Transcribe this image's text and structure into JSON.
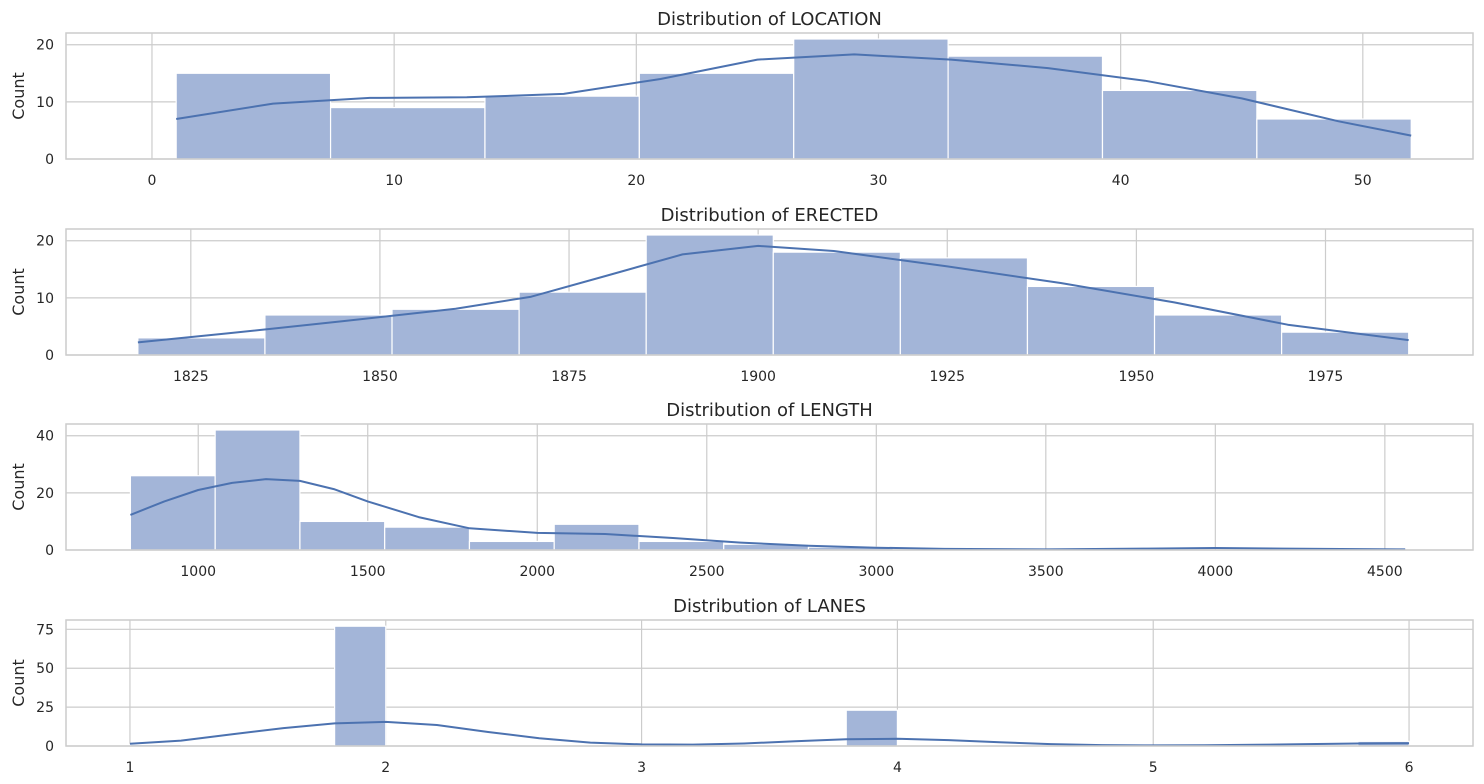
{
  "chart_data": [
    {
      "type": "histogram",
      "title": "Distribution of LOCATION",
      "xlabel": "",
      "ylabel": "Count",
      "xlim": [
        -3.55,
        54.55
      ],
      "ylim": [
        0,
        22.05
      ],
      "xticks": [
        0,
        10,
        20,
        30,
        40,
        50
      ],
      "yticks": [
        0,
        10,
        20
      ],
      "grid": true,
      "bins": [
        {
          "x0": 1.0,
          "x1": 7.375,
          "count": 15
        },
        {
          "x0": 7.375,
          "x1": 13.75,
          "count": 9
        },
        {
          "x0": 13.75,
          "x1": 20.125,
          "count": 11
        },
        {
          "x0": 20.125,
          "x1": 26.5,
          "count": 15
        },
        {
          "x0": 26.5,
          "x1": 32.875,
          "count": 21
        },
        {
          "x0": 32.875,
          "x1": 39.25,
          "count": 18
        },
        {
          "x0": 39.25,
          "x1": 45.625,
          "count": 12
        },
        {
          "x0": 45.625,
          "x1": 52.0,
          "count": 7
        }
      ],
      "kde": {
        "x": [
          1,
          5,
          9,
          13,
          17,
          21,
          25,
          29,
          33,
          37,
          41,
          45,
          49,
          52
        ],
        "y": [
          7.0,
          9.7,
          10.7,
          10.8,
          11.4,
          14.0,
          17.4,
          18.3,
          17.4,
          15.9,
          13.7,
          10.6,
          6.6,
          4.1
        ]
      }
    },
    {
      "type": "histogram",
      "title": "Distribution of ERECTED",
      "xlabel": "",
      "ylabel": "Count",
      "xlim": [
        1808.5,
        1994.5
      ],
      "ylim": [
        0,
        22.05
      ],
      "xticks": [
        1825,
        1850,
        1875,
        1900,
        1925,
        1950,
        1975
      ],
      "yticks": [
        0,
        10,
        20
      ],
      "grid": true,
      "bins": [
        {
          "x0": 1818.0,
          "x1": 1834.8,
          "count": 3
        },
        {
          "x0": 1834.8,
          "x1": 1851.6,
          "count": 7
        },
        {
          "x0": 1851.6,
          "x1": 1868.4,
          "count": 8
        },
        {
          "x0": 1868.4,
          "x1": 1885.2,
          "count": 11
        },
        {
          "x0": 1885.2,
          "x1": 1902.0,
          "count": 21
        },
        {
          "x0": 1902.0,
          "x1": 1918.8,
          "count": 18
        },
        {
          "x0": 1918.8,
          "x1": 1935.6,
          "count": 17
        },
        {
          "x0": 1935.6,
          "x1": 1952.4,
          "count": 12
        },
        {
          "x0": 1952.4,
          "x1": 1969.2,
          "count": 7
        },
        {
          "x0": 1969.2,
          "x1": 1986.0,
          "count": 4
        }
      ],
      "kde": {
        "x": [
          1818,
          1830,
          1845,
          1860,
          1870,
          1880,
          1890,
          1900,
          1910,
          1925,
          1940,
          1955,
          1970,
          1986
        ],
        "y": [
          2.2,
          3.8,
          5.9,
          8.1,
          10.2,
          13.9,
          17.6,
          19.1,
          18.2,
          15.5,
          12.6,
          9.2,
          5.3,
          2.6
        ]
      }
    },
    {
      "type": "histogram",
      "title": "Distribution of LENGTH",
      "xlabel": "",
      "ylabel": "Count",
      "xlim": [
        610,
        4760
      ],
      "ylim": [
        0,
        44.1
      ],
      "xticks": [
        1000,
        1500,
        2000,
        2500,
        3000,
        3500,
        4000,
        4500
      ],
      "yticks": [
        0,
        20,
        40
      ],
      "grid": true,
      "bins": [
        {
          "x0": 800,
          "x1": 1050,
          "count": 26
        },
        {
          "x0": 1050,
          "x1": 1300,
          "count": 42
        },
        {
          "x0": 1300,
          "x1": 1550,
          "count": 10
        },
        {
          "x0": 1550,
          "x1": 1800,
          "count": 8
        },
        {
          "x0": 1800,
          "x1": 2050,
          "count": 3
        },
        {
          "x0": 2050,
          "x1": 2300,
          "count": 9
        },
        {
          "x0": 2300,
          "x1": 2550,
          "count": 3
        },
        {
          "x0": 2550,
          "x1": 2800,
          "count": 2
        },
        {
          "x0": 2800,
          "x1": 3050,
          "count": 1
        }
      ],
      "kde": {
        "x": [
          800,
          900,
          1000,
          1100,
          1200,
          1300,
          1400,
          1500,
          1650,
          1800,
          2000,
          2200,
          2400,
          2600,
          2800,
          3000,
          3200,
          3500,
          3800,
          4000,
          4200,
          4560
        ],
        "y": [
          12.3,
          17.0,
          21.0,
          23.5,
          24.8,
          24.2,
          21.3,
          17.0,
          11.5,
          7.6,
          6.0,
          5.6,
          4.2,
          2.6,
          1.5,
          0.8,
          0.4,
          0.2,
          0.5,
          0.7,
          0.5,
          0.2
        ]
      }
    },
    {
      "type": "histogram",
      "title": "Distribution of LANES",
      "xlabel": "",
      "ylabel": "Count",
      "xlim": [
        0.75,
        6.25
      ],
      "ylim": [
        0,
        81
      ],
      "xticks": [
        1,
        2,
        3,
        4,
        5,
        6
      ],
      "yticks": [
        0,
        25,
        50,
        75
      ],
      "grid": true,
      "bins": [
        {
          "x0": 1.0,
          "x1": 1.2,
          "count": 1
        },
        {
          "x0": 1.8,
          "x1": 2.0,
          "count": 77
        },
        {
          "x0": 3.8,
          "x1": 4.0,
          "count": 23
        },
        {
          "x0": 5.8,
          "x1": 6.0,
          "count": 3
        }
      ],
      "kde": {
        "x": [
          1.0,
          1.2,
          1.4,
          1.6,
          1.8,
          2.0,
          2.2,
          2.4,
          2.6,
          2.8,
          3.0,
          3.2,
          3.4,
          3.6,
          3.8,
          4.0,
          4.2,
          4.4,
          4.6,
          4.8,
          5.0,
          5.2,
          5.4,
          5.6,
          5.8,
          6.0
        ],
        "y": [
          1.5,
          3.5,
          7.5,
          11.5,
          14.5,
          15.5,
          13.5,
          9.0,
          5.0,
          2.2,
          1.0,
          0.9,
          1.6,
          3.0,
          4.3,
          4.6,
          3.8,
          2.4,
          1.2,
          0.6,
          0.4,
          0.5,
          0.8,
          1.2,
          1.6,
          1.8
        ]
      }
    }
  ]
}
